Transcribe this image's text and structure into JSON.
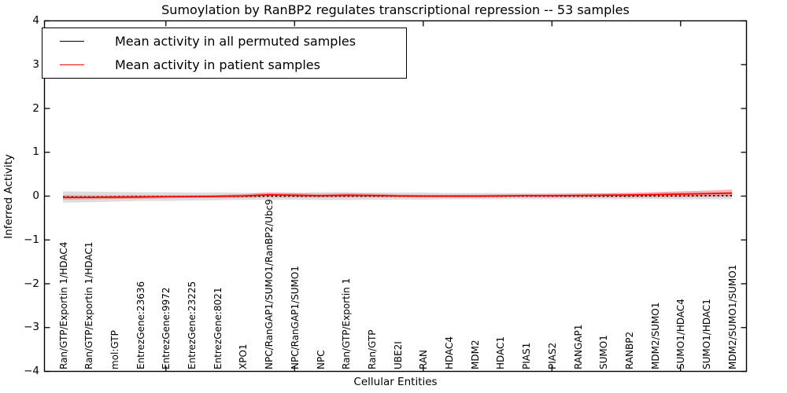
{
  "chart_data": {
    "type": "line",
    "title": "Sumoylation by RanBP2 regulates transcriptional repression -- 53 samples",
    "xlabel": "Cellular Entities",
    "ylabel": "Inferred Activity",
    "ylim": [
      -4,
      4
    ],
    "xlim_note": "27 categorical entities evenly spaced",
    "grid": false,
    "legend_position": "upper left",
    "frame_color": "#000000",
    "background_color": "#ffffff",
    "yticks": [
      4,
      3,
      2,
      1,
      0,
      -1,
      -2,
      -3,
      -4
    ],
    "ytick_labels": [
      "4",
      "3",
      "2",
      "1",
      "0",
      "−1",
      "−2",
      "−3",
      "−4"
    ],
    "xtick_major_indices": [
      4,
      9,
      14,
      19,
      24
    ],
    "categories": [
      "Ran/GTP/Exportin 1/HDAC4",
      "Ran/GTP/Exportin 1/HDAC1",
      "mol:GTP",
      "EntrezGene:23636",
      "EntrezGene:9972",
      "EntrezGene:23225",
      "EntrezGene:8021",
      "XPO1",
      "NPC/RanGAP1/SUMO1/RanBP2/Ubc9",
      "NPC/RanGAP1/SUMO1",
      "NPC",
      "Ran/GTP/Exportin 1",
      "Ran/GTP",
      "UBE2I",
      "RAN",
      "HDAC4",
      "MDM2",
      "HDAC1",
      "PIAS1",
      "PIAS2",
      "RANGAP1",
      "SUMO1",
      "RANBP2",
      "MDM2/SUMO1",
      "SUMO1/HDAC4",
      "SUMO1/HDAC1",
      "MDM2/SUMO1/SUMO1"
    ],
    "series": [
      {
        "name": "Mean activity in all permuted samples",
        "color": "#000000",
        "line_style": "dotted",
        "values": [
          -0.02,
          -0.02,
          -0.015,
          -0.01,
          -0.01,
          -0.01,
          -0.005,
          -0.005,
          0.0,
          0.0,
          0.0,
          0.0,
          0.0,
          0.0,
          0.0,
          0.0,
          0.0,
          0.0,
          0.0,
          0.0,
          0.0,
          0.0,
          0.0,
          0.005,
          0.005,
          0.01,
          0.01
        ],
        "band_halfwidth": [
          0.13,
          0.12,
          0.11,
          0.1,
          0.1,
          0.09,
          0.09,
          0.08,
          0.08,
          0.08,
          0.09,
          0.09,
          0.08,
          0.08,
          0.08,
          0.07,
          0.07,
          0.07,
          0.07,
          0.07,
          0.07,
          0.07,
          0.07,
          0.07,
          0.08,
          0.08,
          0.08
        ],
        "band_color": "#aaaaaa",
        "band_opacity": 0.4
      },
      {
        "name": "Mean activity in patient samples",
        "color": "#ff0000",
        "line_style": "solid",
        "values": [
          -0.03,
          -0.03,
          -0.025,
          -0.02,
          -0.015,
          -0.01,
          -0.005,
          0.005,
          0.03,
          0.02,
          0.01,
          0.02,
          0.015,
          0.005,
          0.0,
          0.0,
          0.0,
          0.005,
          0.01,
          0.01,
          0.015,
          0.02,
          0.025,
          0.035,
          0.045,
          0.055,
          0.07
        ],
        "band_halfwidth": [
          0.05,
          0.045,
          0.04,
          0.04,
          0.035,
          0.03,
          0.03,
          0.04,
          0.05,
          0.045,
          0.04,
          0.045,
          0.04,
          0.03,
          0.03,
          0.03,
          0.03,
          0.03,
          0.03,
          0.035,
          0.04,
          0.045,
          0.05,
          0.055,
          0.065,
          0.07,
          0.08
        ],
        "band_color": "#ff4444",
        "band_opacity": 0.4
      }
    ]
  }
}
